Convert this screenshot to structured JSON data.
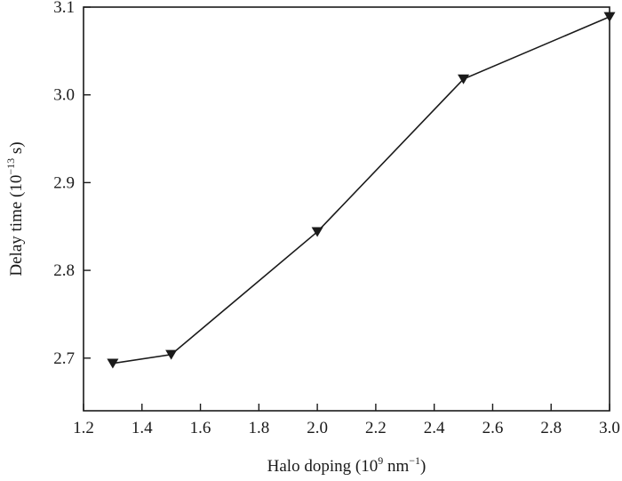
{
  "chart_data": {
    "type": "line",
    "title": "",
    "xlabel": {
      "prefix": "Halo doping (10",
      "sup1": "9",
      "mid": " nm",
      "sup2": "−1",
      "suffix": ")"
    },
    "ylabel": {
      "prefix": "Delay time (10",
      "sup1": "−13",
      "suffix": " s)"
    },
    "xlim": [
      1.2,
      3.0
    ],
    "ylim": [
      2.64,
      3.1
    ],
    "xticks": [
      1.2,
      1.4,
      1.6,
      1.8,
      2.0,
      2.2,
      2.4,
      2.6,
      2.8,
      3.0
    ],
    "xtick_labels": [
      "1.2",
      "1.4",
      "1.6",
      "1.8",
      "2.0",
      "2.2",
      "2.4",
      "2.6",
      "2.8",
      "3.0"
    ],
    "yticks": [
      2.7,
      2.8,
      2.9,
      3.0,
      3.1
    ],
    "ytick_labels": [
      "2.7",
      "2.8",
      "2.9",
      "3.0",
      "3.1"
    ],
    "grid": false,
    "legend": "none",
    "marker": "triangle-down",
    "line_color": "#1a1a1a",
    "series": [
      {
        "x": [
          1.3,
          1.5,
          2.0,
          2.5,
          3.0
        ],
        "y": [
          2.694,
          2.704,
          2.844,
          3.018,
          3.089
        ]
      }
    ]
  }
}
